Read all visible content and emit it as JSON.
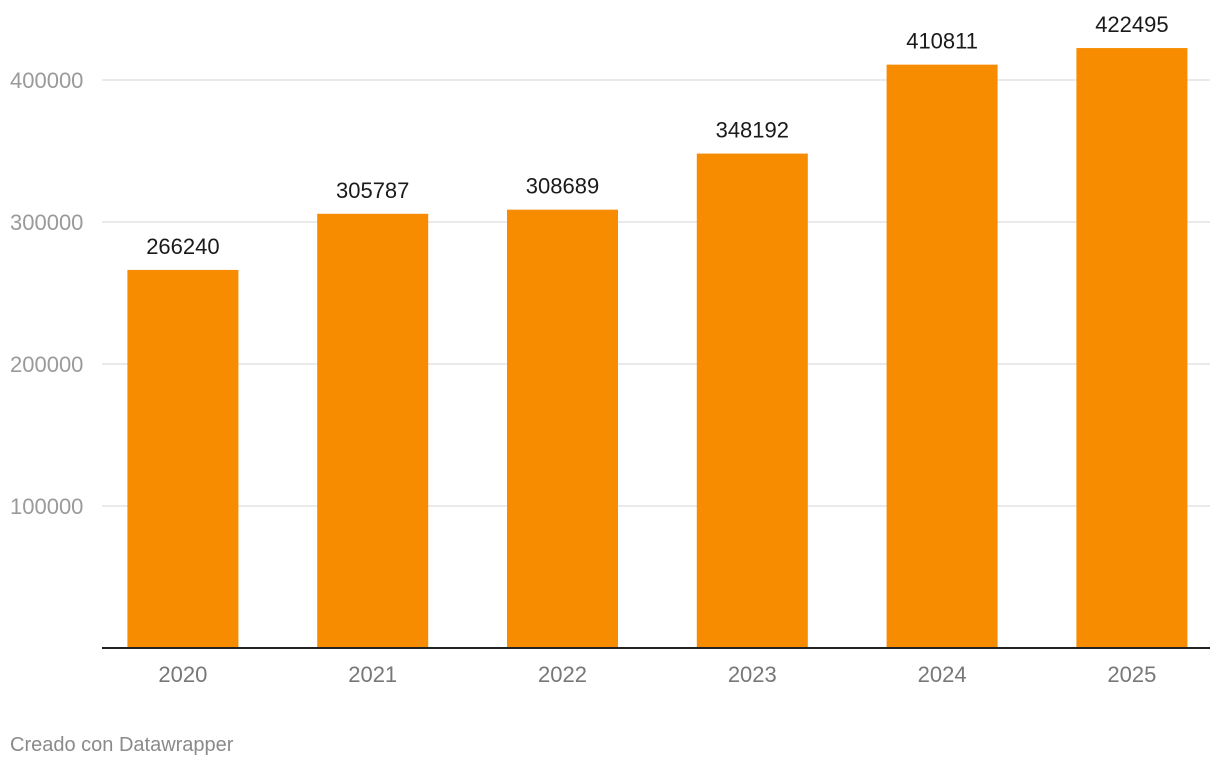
{
  "chart_data": {
    "type": "bar",
    "title": "",
    "xlabel": "",
    "ylabel": "",
    "categories": [
      "2020",
      "2021",
      "2022",
      "2023",
      "2024",
      "2025"
    ],
    "values": [
      266240,
      305787,
      308689,
      348192,
      410811,
      422495
    ],
    "data_labels": [
      "266240",
      "305787",
      "308689",
      "348192",
      "410811",
      "422495"
    ],
    "ylim": [
      0,
      442000
    ],
    "yticks": [
      100000,
      200000,
      300000,
      400000
    ],
    "ytick_labels": [
      "100000",
      "200000",
      "300000",
      "400000"
    ],
    "grid": true,
    "legend": "none",
    "colors": {
      "bar": "#f78c00",
      "grid": "#e3e3e3",
      "axis": "#222222",
      "tick_label": "#9a9a9a",
      "data_label": "#1a1a1a"
    }
  },
  "footer": {
    "credit": "Creado con Datawrapper"
  }
}
